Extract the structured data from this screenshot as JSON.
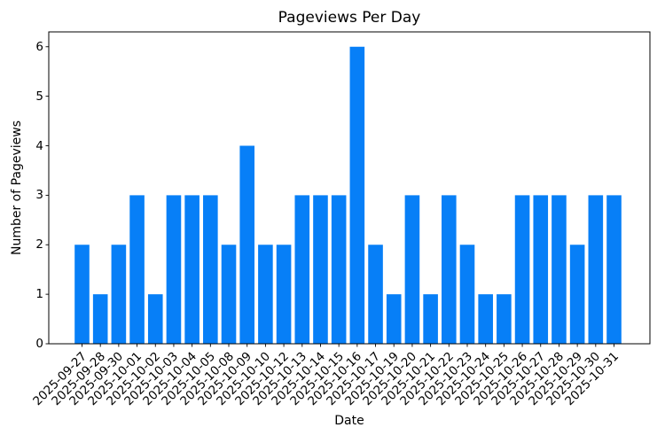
{
  "chart_data": {
    "type": "bar",
    "title": "Pageviews Per Day",
    "xlabel": "Date",
    "ylabel": "Number of Pageviews",
    "categories": [
      "2025-09-27",
      "2025-09-28",
      "2025-09-30",
      "2025-10-01",
      "2025-10-02",
      "2025-10-03",
      "2025-10-04",
      "2025-10-05",
      "2025-10-08",
      "2025-10-09",
      "2025-10-10",
      "2025-10-12",
      "2025-10-13",
      "2025-10-14",
      "2025-10-15",
      "2025-10-16",
      "2025-10-17",
      "2025-10-19",
      "2025-10-20",
      "2025-10-21",
      "2025-10-22",
      "2025-10-23",
      "2025-10-24",
      "2025-10-25",
      "2025-10-26",
      "2025-10-27",
      "2025-10-28",
      "2025-10-29",
      "2025-10-30",
      "2025-10-31"
    ],
    "values": [
      2,
      1,
      2,
      3,
      1,
      3,
      3,
      3,
      2,
      4,
      2,
      2,
      3,
      3,
      3,
      6,
      2,
      1,
      3,
      1,
      3,
      2,
      1,
      1,
      3,
      3,
      3,
      2,
      3,
      3
    ],
    "yticks": [
      0,
      1,
      2,
      3,
      4,
      5,
      6
    ],
    "ylim": [
      0,
      6.3
    ],
    "grid": false,
    "legend": null,
    "bar_color": "#077ff7",
    "axis_color": "#000000",
    "background_color": "#ffffff"
  }
}
